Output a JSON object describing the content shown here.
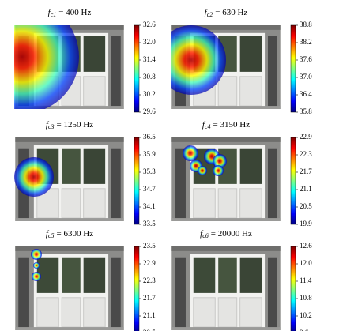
{
  "chart_data": [
    {
      "type": "heatmap",
      "title": {
        "var": "f",
        "sub": "c1",
        "rest": "= 400 Hz"
      },
      "clim": [
        29.6,
        32.6
      ],
      "cticks": [
        29.6,
        30.2,
        30.8,
        31.4,
        {
          "value": 32,
          "label": "32.0"
        },
        32.6
      ]
    },
    {
      "type": "heatmap",
      "title": {
        "var": "f",
        "sub": "c2",
        "rest": "= 630 Hz"
      },
      "clim": [
        35.8,
        38.8
      ],
      "cticks": [
        35.8,
        36.4,
        {
          "value": 37,
          "label": "37.0"
        },
        37.6,
        38.2,
        38.8
      ]
    },
    {
      "type": "heatmap",
      "title": {
        "var": "f",
        "sub": "c3",
        "rest": "= 1250 Hz"
      },
      "clim": [
        33.5,
        36.5
      ],
      "cticks": [
        33.5,
        34.1,
        34.7,
        35.3,
        35.9,
        36.5
      ]
    },
    {
      "type": "heatmap",
      "title": {
        "var": "f",
        "sub": "c4",
        "rest": "= 3150 Hz"
      },
      "clim": [
        19.9,
        22.9
      ],
      "cticks": [
        19.9,
        20.5,
        21.1,
        21.7,
        22.3,
        22.9
      ]
    },
    {
      "type": "heatmap",
      "title": {
        "var": "f",
        "sub": "c5",
        "rest": "= 6300 Hz"
      },
      "clim": [
        20.5,
        23.5
      ],
      "cticks": [
        20.5,
        21.1,
        21.7,
        22.3,
        22.9,
        23.5
      ]
    },
    {
      "type": "heatmap",
      "title": {
        "var": "f",
        "sub": "c6",
        "rest": "= 20000 Hz"
      },
      "clim": [
        9.6,
        12.6
      ],
      "cticks": [
        9.6,
        10.2,
        10.8,
        11.4,
        {
          "value": 12,
          "label": "12.0"
        },
        12.6
      ]
    }
  ]
}
